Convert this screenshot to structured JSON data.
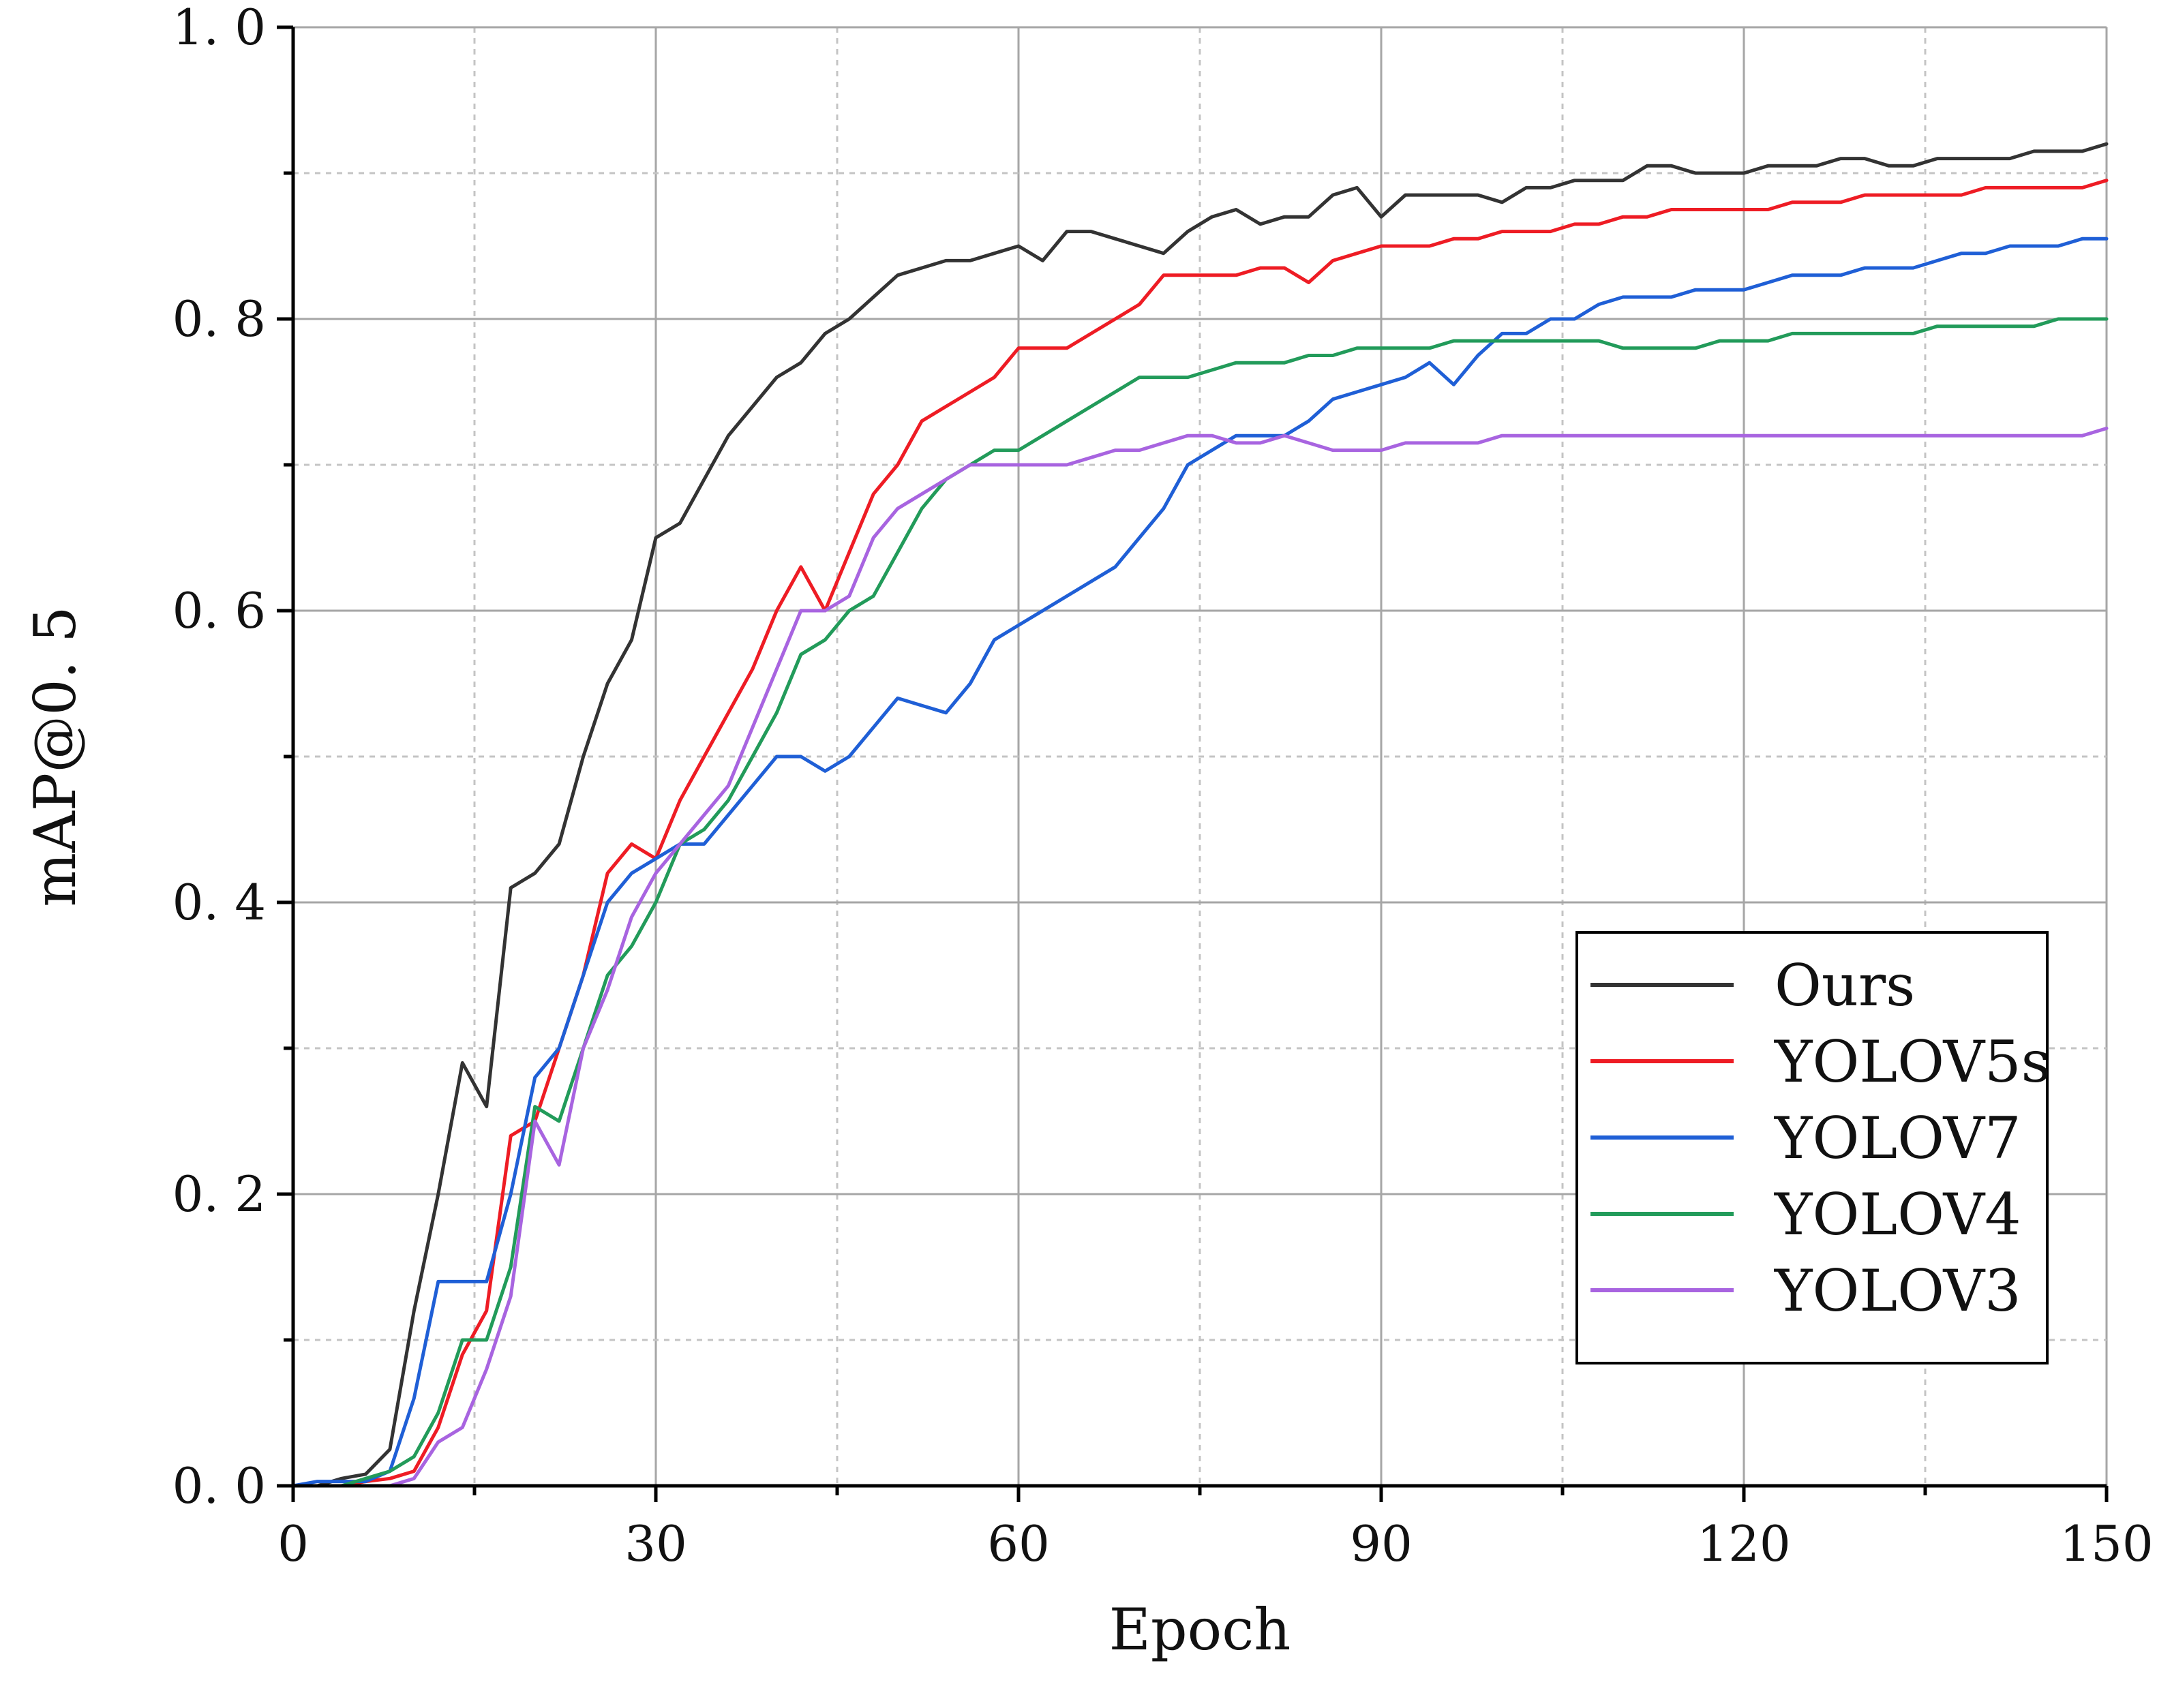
{
  "chart_data": {
    "type": "line",
    "title": "",
    "xlabel": "Epoch",
    "ylabel": "mAP@0. 5",
    "xlim": [
      0,
      150
    ],
    "ylim": [
      0,
      1.0
    ],
    "x_ticks": [
      0,
      30,
      60,
      90,
      120,
      150
    ],
    "x_tick_labels": [
      "0",
      "30",
      "60",
      "90",
      "120",
      "150"
    ],
    "y_ticks": [
      0,
      0.2,
      0.4,
      0.6,
      0.8,
      1.0
    ],
    "y_tick_labels": [
      "0. 0",
      "0. 2",
      "0. 4",
      "0. 6",
      "0. 8",
      "1. 0"
    ],
    "grid": true,
    "legend_position": "bottom-right",
    "x": [
      0,
      2,
      4,
      6,
      8,
      10,
      12,
      14,
      16,
      18,
      20,
      22,
      24,
      26,
      28,
      30,
      32,
      34,
      36,
      38,
      40,
      42,
      44,
      46,
      48,
      50,
      52,
      54,
      56,
      58,
      60,
      62,
      64,
      66,
      68,
      70,
      72,
      74,
      76,
      78,
      80,
      82,
      84,
      86,
      88,
      90,
      92,
      94,
      96,
      98,
      100,
      102,
      104,
      106,
      108,
      110,
      112,
      114,
      116,
      118,
      120,
      122,
      124,
      126,
      128,
      130,
      132,
      134,
      136,
      138,
      140,
      142,
      144,
      146,
      148,
      150
    ],
    "series": [
      {
        "name": "Ours",
        "color": "#333333",
        "values": [
          0.0,
          0.0,
          0.005,
          0.008,
          0.025,
          0.12,
          0.2,
          0.29,
          0.26,
          0.41,
          0.42,
          0.44,
          0.5,
          0.55,
          0.58,
          0.65,
          0.66,
          0.69,
          0.72,
          0.74,
          0.76,
          0.77,
          0.79,
          0.8,
          0.815,
          0.83,
          0.835,
          0.84,
          0.84,
          0.845,
          0.85,
          0.84,
          0.86,
          0.86,
          0.855,
          0.85,
          0.845,
          0.86,
          0.87,
          0.875,
          0.865,
          0.87,
          0.87,
          0.885,
          0.89,
          0.87,
          0.885,
          0.885,
          0.885,
          0.885,
          0.88,
          0.89,
          0.89,
          0.895,
          0.895,
          0.895,
          0.905,
          0.905,
          0.9,
          0.9,
          0.9,
          0.905,
          0.905,
          0.905,
          0.91,
          0.91,
          0.905,
          0.905,
          0.91,
          0.91,
          0.91,
          0.91,
          0.915,
          0.915,
          0.915,
          0.92
        ]
      },
      {
        "name": "YOLOV5s",
        "color": "#ee1c24",
        "values": [
          0.0,
          0.0,
          0.0,
          0.003,
          0.005,
          0.01,
          0.04,
          0.09,
          0.12,
          0.24,
          0.25,
          0.3,
          0.35,
          0.42,
          0.44,
          0.43,
          0.47,
          0.5,
          0.53,
          0.56,
          0.6,
          0.63,
          0.6,
          0.64,
          0.68,
          0.7,
          0.73,
          0.74,
          0.75,
          0.76,
          0.78,
          0.78,
          0.78,
          0.79,
          0.8,
          0.81,
          0.83,
          0.83,
          0.83,
          0.83,
          0.835,
          0.835,
          0.825,
          0.84,
          0.845,
          0.85,
          0.85,
          0.85,
          0.855,
          0.855,
          0.86,
          0.86,
          0.86,
          0.865,
          0.865,
          0.87,
          0.87,
          0.875,
          0.875,
          0.875,
          0.875,
          0.875,
          0.88,
          0.88,
          0.88,
          0.885,
          0.885,
          0.885,
          0.885,
          0.885,
          0.89,
          0.89,
          0.89,
          0.89,
          0.89,
          0.895
        ]
      },
      {
        "name": "YOLOV7",
        "color": "#1f5fd6",
        "values": [
          0.0,
          0.003,
          0.003,
          0.003,
          0.01,
          0.06,
          0.14,
          0.14,
          0.14,
          0.2,
          0.28,
          0.3,
          0.35,
          0.4,
          0.42,
          0.43,
          0.44,
          0.44,
          0.46,
          0.48,
          0.5,
          0.5,
          0.49,
          0.5,
          0.52,
          0.54,
          0.535,
          0.53,
          0.55,
          0.58,
          0.59,
          0.6,
          0.61,
          0.62,
          0.63,
          0.65,
          0.67,
          0.7,
          0.71,
          0.72,
          0.72,
          0.72,
          0.73,
          0.745,
          0.75,
          0.755,
          0.76,
          0.77,
          0.755,
          0.775,
          0.79,
          0.79,
          0.8,
          0.8,
          0.81,
          0.815,
          0.815,
          0.815,
          0.82,
          0.82,
          0.82,
          0.825,
          0.83,
          0.83,
          0.83,
          0.835,
          0.835,
          0.835,
          0.84,
          0.845,
          0.845,
          0.85,
          0.85,
          0.85,
          0.855,
          0.855
        ]
      },
      {
        "name": "YOLOV4",
        "color": "#229b5a",
        "values": [
          0.0,
          0.0,
          0.0,
          0.005,
          0.01,
          0.02,
          0.05,
          0.1,
          0.1,
          0.15,
          0.26,
          0.25,
          0.3,
          0.35,
          0.37,
          0.4,
          0.44,
          0.45,
          0.47,
          0.5,
          0.53,
          0.57,
          0.58,
          0.6,
          0.61,
          0.64,
          0.67,
          0.69,
          0.7,
          0.71,
          0.71,
          0.72,
          0.73,
          0.74,
          0.75,
          0.76,
          0.76,
          0.76,
          0.765,
          0.77,
          0.77,
          0.77,
          0.775,
          0.775,
          0.78,
          0.78,
          0.78,
          0.78,
          0.785,
          0.785,
          0.785,
          0.785,
          0.785,
          0.785,
          0.785,
          0.78,
          0.78,
          0.78,
          0.78,
          0.785,
          0.785,
          0.785,
          0.79,
          0.79,
          0.79,
          0.79,
          0.79,
          0.79,
          0.795,
          0.795,
          0.795,
          0.795,
          0.795,
          0.8,
          0.8,
          0.8
        ]
      },
      {
        "name": "YOLOV3",
        "color": "#a864e0",
        "values": [
          0.0,
          0.0,
          0.0,
          0.0,
          0.0,
          0.005,
          0.03,
          0.04,
          0.08,
          0.13,
          0.25,
          0.22,
          0.3,
          0.34,
          0.39,
          0.42,
          0.44,
          0.46,
          0.48,
          0.52,
          0.56,
          0.6,
          0.6,
          0.61,
          0.65,
          0.67,
          0.68,
          0.69,
          0.7,
          0.7,
          0.7,
          0.7,
          0.7,
          0.705,
          0.71,
          0.71,
          0.715,
          0.72,
          0.72,
          0.715,
          0.715,
          0.72,
          0.715,
          0.71,
          0.71,
          0.71,
          0.715,
          0.715,
          0.715,
          0.715,
          0.72,
          0.72,
          0.72,
          0.72,
          0.72,
          0.72,
          0.72,
          0.72,
          0.72,
          0.72,
          0.72,
          0.72,
          0.72,
          0.72,
          0.72,
          0.72,
          0.72,
          0.72,
          0.72,
          0.72,
          0.72,
          0.72,
          0.72,
          0.72,
          0.72,
          0.725
        ]
      }
    ]
  }
}
